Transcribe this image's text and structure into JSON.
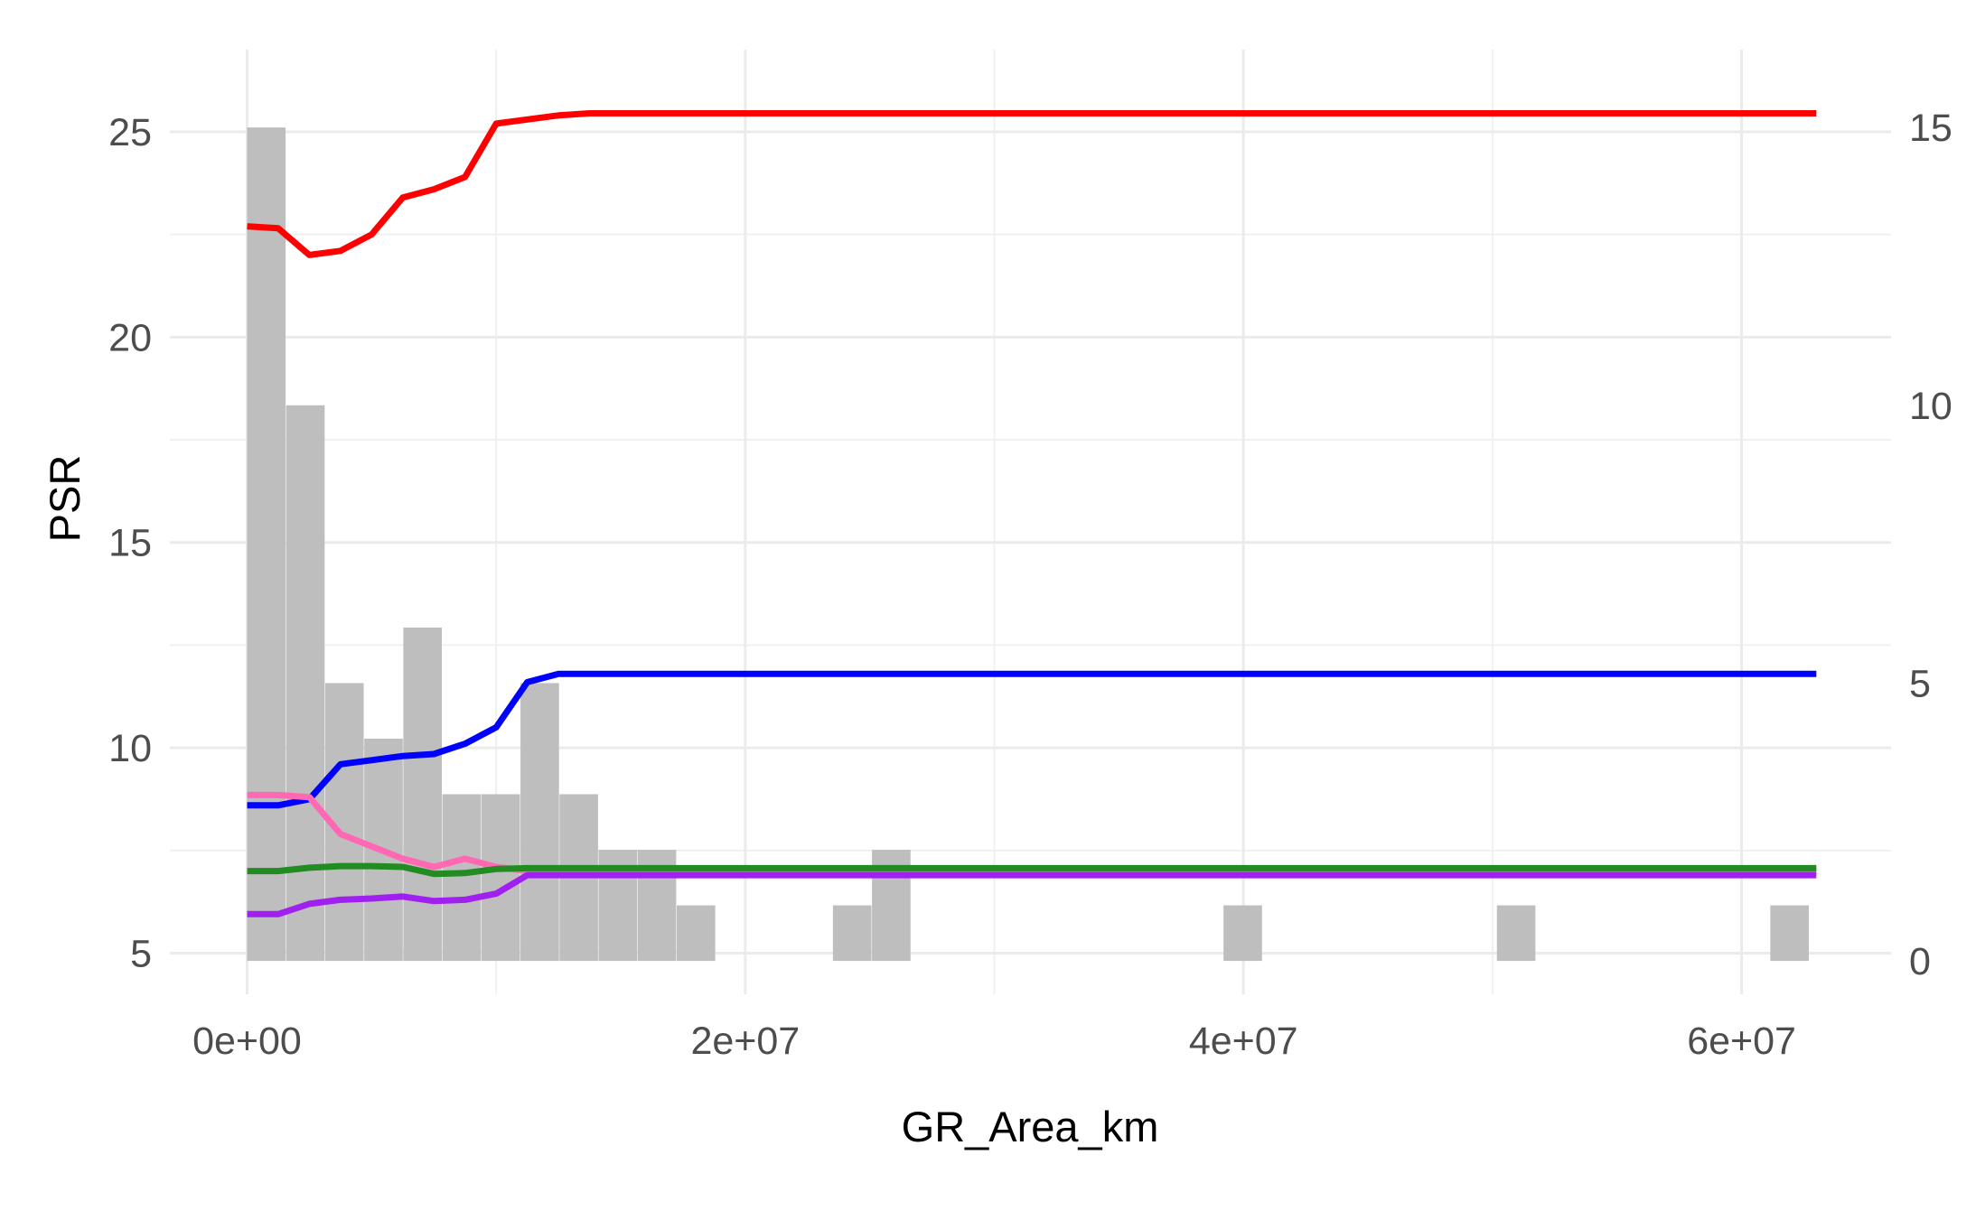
{
  "chart_data": {
    "type": "bar",
    "subtype": "histogram with overlaid lines (dual y-axis)",
    "title": "",
    "xlabel": "GR_Area_km",
    "ylabel": "PSR",
    "ylabel_right": "",
    "x_ticks": [
      0,
      20000000,
      40000000,
      60000000
    ],
    "x_tick_labels": [
      "0e+00",
      "2e+07",
      "4e+07",
      "6e+07"
    ],
    "xlim": [
      -3100000,
      66000000
    ],
    "y_left_ticks": [
      5,
      10,
      15,
      20,
      25
    ],
    "y_left_tick_labels": [
      "5",
      "10",
      "15",
      "20",
      "25"
    ],
    "y_left_lim": [
      4,
      27
    ],
    "y_right_ticks": [
      0,
      5,
      10,
      15
    ],
    "y_right_tick_labels": [
      "0",
      "5",
      "10",
      "15"
    ],
    "y_right_lim": [
      -0.6,
      16.4
    ],
    "grid": true,
    "legend": "none",
    "histogram": {
      "axis": "right",
      "color": "#bebebe",
      "bin_width": 1568000,
      "bin_starts": [
        0,
        1568000,
        3136000,
        4704000,
        6272000,
        7840000,
        9408000,
        10976000,
        12544000,
        14112000,
        15680000,
        17248000,
        23520000,
        25088000,
        39200000,
        50176000,
        61152000
      ],
      "counts": [
        15,
        10,
        5,
        4,
        6,
        3,
        3,
        5,
        3,
        2,
        2,
        1,
        1,
        2,
        1,
        1,
        1
      ]
    },
    "series": [
      {
        "color": "#ff0000",
        "axis": "left",
        "x": [
          0,
          1250000,
          2500000,
          3750000,
          5000000,
          6250000,
          7500000,
          8750000,
          10000000,
          11250000,
          12500000,
          13750000,
          63000000
        ],
        "values": [
          22.7,
          22.65,
          22.0,
          22.1,
          22.5,
          23.4,
          23.6,
          23.9,
          25.2,
          25.3,
          25.4,
          25.45,
          25.45
        ]
      },
      {
        "color": "#0000ff",
        "axis": "left",
        "x": [
          0,
          1250000,
          2500000,
          3750000,
          5000000,
          6250000,
          7500000,
          8750000,
          10000000,
          11250000,
          12500000,
          13750000,
          63000000
        ],
        "values": [
          8.6,
          8.6,
          8.75,
          9.6,
          9.7,
          9.8,
          9.85,
          10.1,
          10.5,
          11.6,
          11.8,
          11.8,
          11.8
        ]
      },
      {
        "color": "#ff69b4",
        "axis": "left",
        "x": [
          0,
          1250000,
          2500000,
          3750000,
          5000000,
          6250000,
          7500000,
          8750000,
          10000000,
          11250000,
          12500000,
          13750000,
          63000000
        ],
        "values": [
          8.85,
          8.85,
          8.8,
          7.9,
          7.6,
          7.3,
          7.1,
          7.3,
          7.1,
          7.0,
          7.0,
          7.0,
          7.0
        ]
      },
      {
        "color": "#228b22",
        "axis": "left",
        "x": [
          0,
          1250000,
          2500000,
          3750000,
          5000000,
          6250000,
          7500000,
          8750000,
          10000000,
          11250000,
          12500000,
          13750000,
          63000000
        ],
        "values": [
          7.0,
          7.0,
          7.08,
          7.12,
          7.12,
          7.1,
          6.93,
          6.95,
          7.05,
          7.07,
          7.07,
          7.07,
          7.07
        ]
      },
      {
        "color": "#a020f0",
        "axis": "left",
        "x": [
          0,
          1250000,
          2500000,
          3750000,
          5000000,
          6250000,
          7500000,
          8750000,
          10000000,
          11250000,
          12500000,
          13750000,
          63000000
        ],
        "values": [
          5.95,
          5.95,
          6.2,
          6.3,
          6.33,
          6.38,
          6.27,
          6.3,
          6.45,
          6.9,
          6.9,
          6.9,
          6.9
        ]
      }
    ]
  }
}
